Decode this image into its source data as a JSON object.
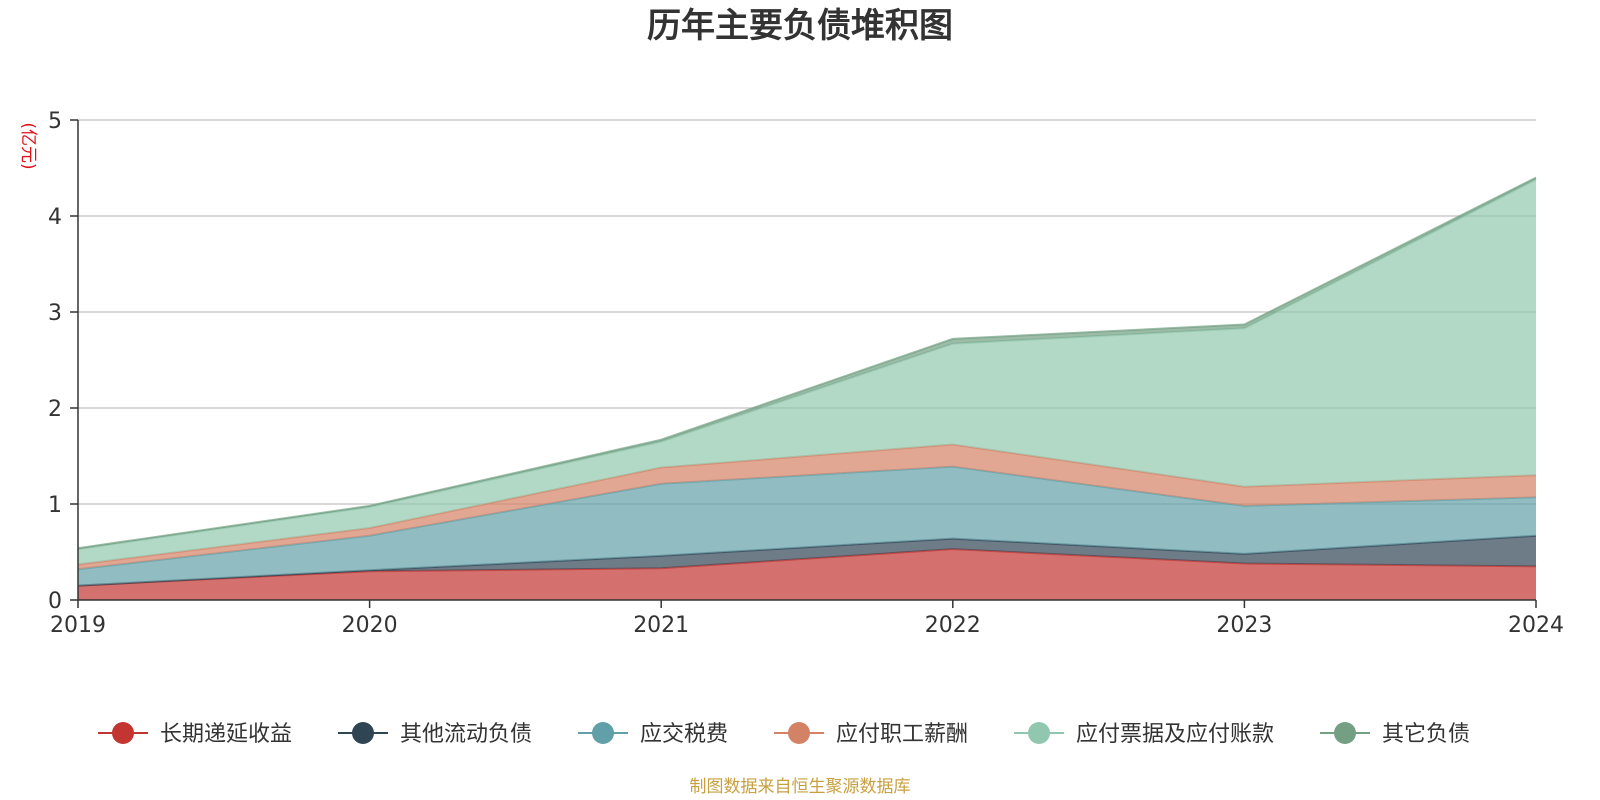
{
  "chart_data": {
    "type": "area",
    "stacked": true,
    "title": "历年主要负债堆积图",
    "unit_label": "(亿元)",
    "x": [
      "2019",
      "2020",
      "2021",
      "2022",
      "2023",
      "2024"
    ],
    "ylim": [
      0,
      5
    ],
    "yticks": [
      "0",
      "1",
      "2",
      "3",
      "4",
      "5"
    ],
    "grid": true,
    "legend_position": "bottom",
    "series": [
      {
        "name": "长期递延收益",
        "color": "#c23531",
        "values": [
          0.15,
          0.3,
          0.33,
          0.53,
          0.38,
          0.35
        ]
      },
      {
        "name": "其他流动负债",
        "color": "#2f4554",
        "values": [
          0.0,
          0.01,
          0.13,
          0.11,
          0.1,
          0.32
        ]
      },
      {
        "name": "应交税费",
        "color": "#61a0a8",
        "values": [
          0.17,
          0.36,
          0.75,
          0.75,
          0.5,
          0.4
        ]
      },
      {
        "name": "应付职工薪酬",
        "color": "#d48265",
        "values": [
          0.05,
          0.08,
          0.17,
          0.23,
          0.2,
          0.23
        ]
      },
      {
        "name": "应付票据及应付账款",
        "color": "#91c7ae",
        "values": [
          0.16,
          0.22,
          0.27,
          1.05,
          1.65,
          3.08
        ]
      },
      {
        "name": "其它负债",
        "color": "#749f83",
        "values": [
          0.01,
          0.01,
          0.02,
          0.05,
          0.04,
          0.02
        ]
      }
    ]
  },
  "footer": {
    "source": "制图数据来自恒生聚源数据库"
  }
}
